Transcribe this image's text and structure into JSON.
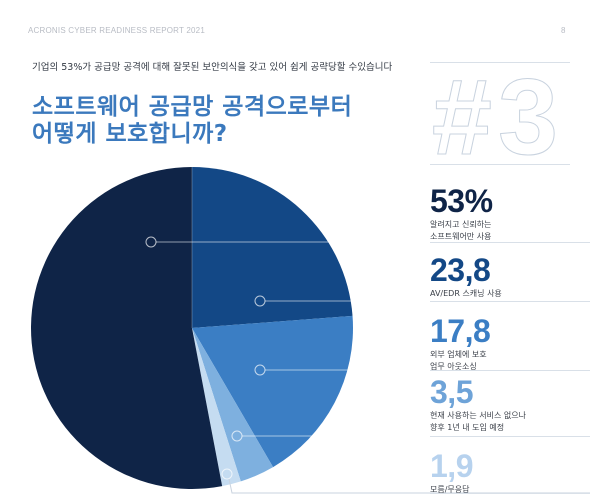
{
  "header": {
    "title": "ACRONIS CYBER READINESS REPORT 2021",
    "page_number": "8"
  },
  "subtitle": "기업의 53%가 공급망 공격에 대해 잘못된 보안의식을 갖고 있어 쉽게 공략당할 수있습니다",
  "title_line1": "소프트웨어 공급망 공격으로부터",
  "title_line2": "어떻게 보호합니까?",
  "rank_badge": "#3",
  "colors": {
    "title": "#3b79bd",
    "slice_1": "#0f2447",
    "slice_2": "#134886",
    "slice_3": "#3b7ec4",
    "slice_4": "#7eb0df",
    "slice_5": "#c5dcf1"
  },
  "stats": [
    {
      "value": "53%",
      "label_line1": "알려지고 신뢰하는",
      "label_line2": "소프트웨어만 사용",
      "color": "#0f2447"
    },
    {
      "value": "23,8",
      "label_line1": "AV/EDR 스캐닝 사용",
      "label_line2": "",
      "color": "#134886"
    },
    {
      "value": "17,8",
      "label_line1": "외부 업체에 보호",
      "label_line2": "업무 아웃소싱",
      "color": "#3b7ec4"
    },
    {
      "value": "3,5",
      "label_line1": "현재 사용하는 서비스 없으나",
      "label_line2": "향후 1년 내 도입 예정",
      "color": "#6ea3d8"
    },
    {
      "value": "1,9",
      "label_line1": "모름/무응답",
      "label_line2": "",
      "color": "#b7d2ee"
    }
  ],
  "chart_data": {
    "type": "pie",
    "title": "소프트웨어 공급망 공격으로부터 어떻게 보호합니까?",
    "categories": [
      "알려지고 신뢰하는 소프트웨어만 사용",
      "AV/EDR 스캐닝 사용",
      "외부 업체에 보호 업무 아웃소싱",
      "현재 사용하는 서비스 없으나 향후 1년 내 도입 예정",
      "모름/무응답"
    ],
    "values": [
      53,
      23.8,
      17.8,
      3.5,
      1.9
    ],
    "unit": "%",
    "colors": [
      "#0f2447",
      "#134886",
      "#3b7ec4",
      "#7eb0df",
      "#c5dcf1"
    ],
    "legend_position": "right"
  }
}
